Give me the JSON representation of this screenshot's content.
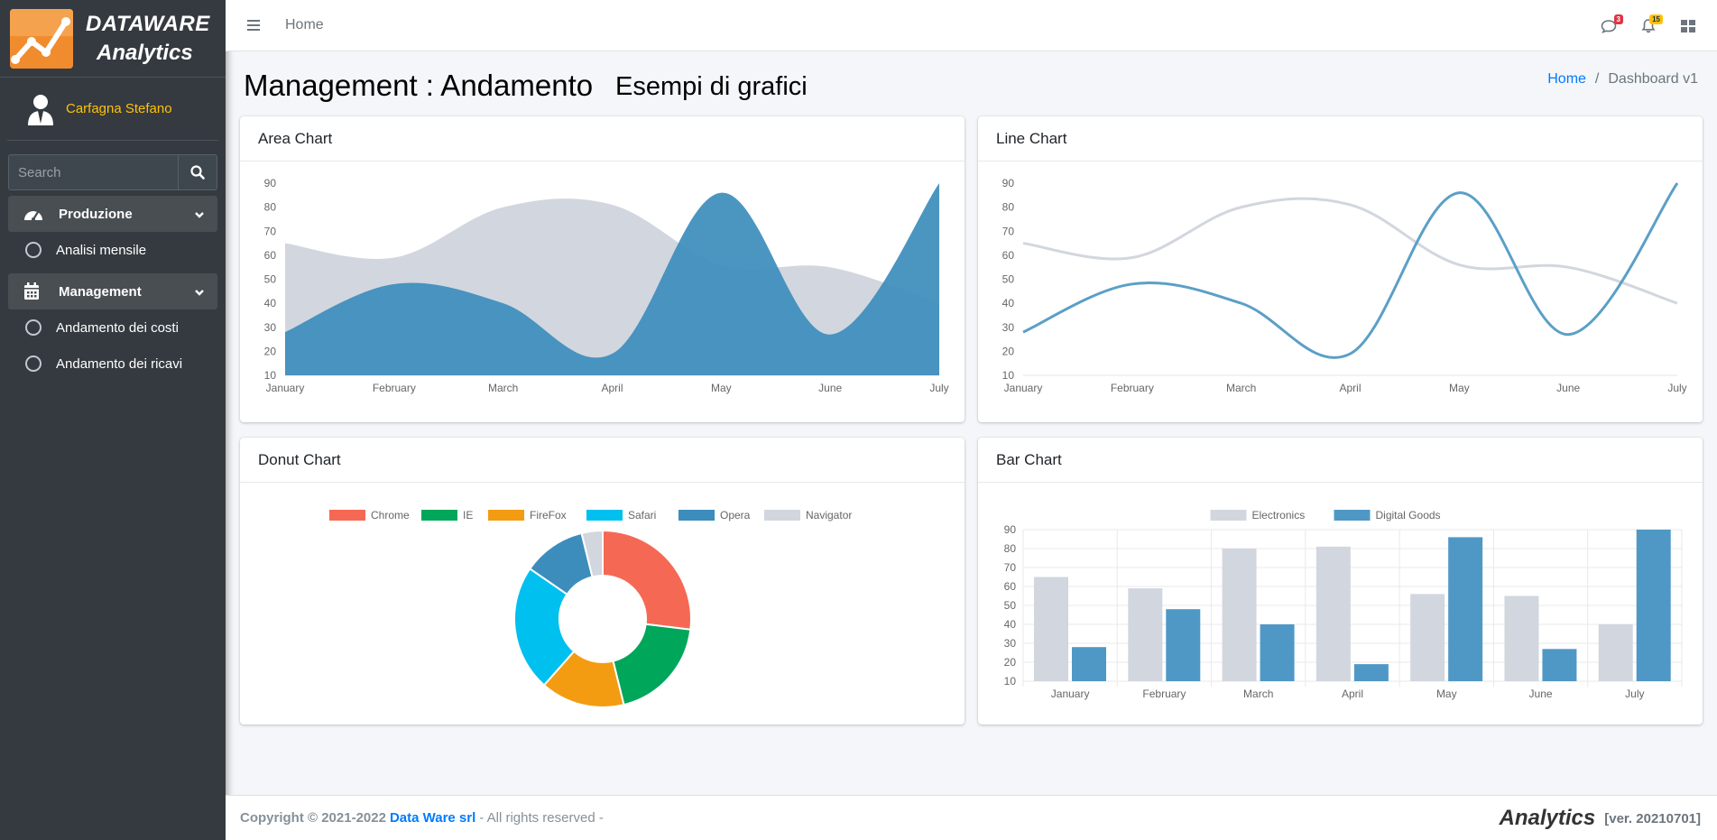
{
  "brand": {
    "line1": "DATAWARE",
    "line2": "Analytics"
  },
  "user": {
    "name": "Carfagna Stefano"
  },
  "search": {
    "placeholder": "Search"
  },
  "sidebar": {
    "groups": [
      {
        "label": "Produzione",
        "items": [
          {
            "label": "Analisi mensile"
          }
        ]
      },
      {
        "label": "Management",
        "items": [
          {
            "label": "Andamento dei costi"
          },
          {
            "label": "Andamento dei ricavi"
          }
        ]
      }
    ]
  },
  "header": {
    "home_link": "Home",
    "messages_badge": "3",
    "notifications_badge": "15"
  },
  "page": {
    "title": "Management : Andamento",
    "subtitle": "Esempi di grafici",
    "breadcrumb": {
      "home": "Home",
      "separator": "/",
      "current": "Dashboard v1"
    }
  },
  "cards": {
    "area": {
      "title": "Area Chart"
    },
    "line": {
      "title": "Line Chart"
    },
    "donut": {
      "title": "Donut Chart"
    },
    "bar": {
      "title": "Bar Chart"
    }
  },
  "footer": {
    "copyright": "Copyright © 2021-2022",
    "company": "Data Ware srl",
    "rights": "- All rights reserved -",
    "brand": "Analytics",
    "version": "[ver. 20210701]"
  },
  "colors": {
    "grey_series": "#d2d6de",
    "blue_series": "#3c8dbc",
    "line_grey": "#d2d6de",
    "line_blue": "#5b9fc7"
  },
  "chart_data": [
    {
      "id": "area",
      "type": "area",
      "title": "Area Chart",
      "categories": [
        "January",
        "February",
        "March",
        "April",
        "May",
        "June",
        "July"
      ],
      "yticks": [
        10,
        20,
        30,
        40,
        50,
        60,
        70,
        80,
        90
      ],
      "ylim": [
        10,
        90
      ],
      "series": [
        {
          "name": "Electronics",
          "values": [
            65,
            59,
            80,
            81,
            56,
            55,
            40
          ],
          "color": "#d2d6de"
        },
        {
          "name": "Digital Goods",
          "values": [
            28,
            48,
            40,
            19,
            86,
            27,
            90
          ],
          "color": "#3c8dbc"
        }
      ]
    },
    {
      "id": "line",
      "type": "line",
      "title": "Line Chart",
      "categories": [
        "January",
        "February",
        "March",
        "April",
        "May",
        "June",
        "July"
      ],
      "yticks": [
        10,
        20,
        30,
        40,
        50,
        60,
        70,
        80,
        90
      ],
      "ylim": [
        10,
        90
      ],
      "series": [
        {
          "name": "Electronics",
          "values": [
            65,
            59,
            80,
            81,
            56,
            55,
            40
          ],
          "color": "#d2d6de"
        },
        {
          "name": "Digital Goods",
          "values": [
            28,
            48,
            40,
            19,
            86,
            27,
            90
          ],
          "color": "#5b9fc7"
        }
      ]
    },
    {
      "id": "donut",
      "type": "pie",
      "title": "Donut Chart",
      "labels": [
        "Chrome",
        "IE",
        "FireFox",
        "Safari",
        "Opera",
        "Navigator"
      ],
      "values": [
        700,
        500,
        400,
        600,
        300,
        100
      ],
      "colors": [
        "#f56954",
        "#00a65a",
        "#f39c12",
        "#00c0ef",
        "#3c8dbc",
        "#d2d6de"
      ],
      "legend": "top"
    },
    {
      "id": "bar",
      "type": "bar",
      "title": "Bar Chart",
      "categories": [
        "January",
        "February",
        "March",
        "April",
        "May",
        "June",
        "July"
      ],
      "yticks": [
        10,
        20,
        30,
        40,
        50,
        60,
        70,
        80,
        90
      ],
      "ylim": [
        10,
        90
      ],
      "legend": "top",
      "series": [
        {
          "name": "Electronics",
          "values": [
            65,
            59,
            80,
            81,
            56,
            55,
            40
          ],
          "color": "#d2d6de"
        },
        {
          "name": "Digital Goods",
          "values": [
            28,
            48,
            40,
            19,
            86,
            27,
            90
          ],
          "color": "#4f98c6"
        }
      ]
    }
  ]
}
